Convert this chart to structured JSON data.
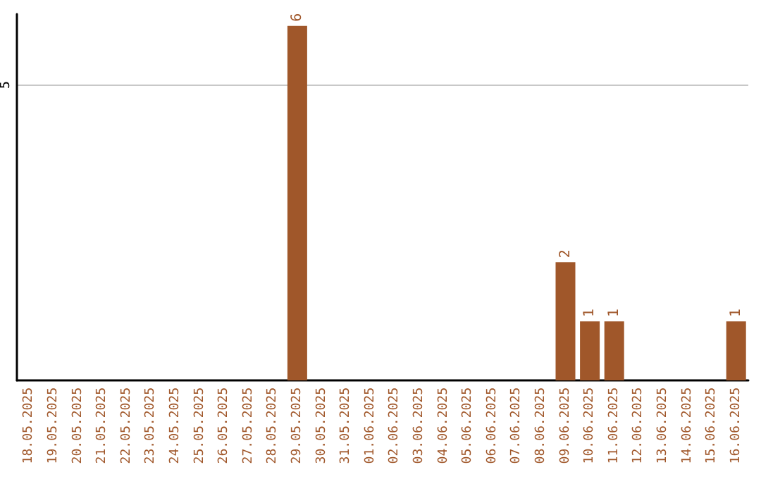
{
  "chart_data": {
    "type": "bar",
    "categories": [
      "18.05.2025",
      "19.05.2025",
      "20.05.2025",
      "21.05.2025",
      "22.05.2025",
      "23.05.2025",
      "24.05.2025",
      "25.05.2025",
      "26.05.2025",
      "27.05.2025",
      "28.05.2025",
      "29.05.2025",
      "30.05.2025",
      "31.05.2025",
      "01.06.2025",
      "02.06.2025",
      "03.06.2025",
      "04.06.2025",
      "05.06.2025",
      "06.06.2025",
      "07.06.2025",
      "08.06.2025",
      "09.06.2025",
      "10.06.2025",
      "11.06.2025",
      "12.06.2025",
      "13.06.2025",
      "14.06.2025",
      "15.06.2025",
      "16.06.2025"
    ],
    "values": [
      0,
      0,
      0,
      0,
      0,
      0,
      0,
      0,
      0,
      0,
      0,
      6,
      0,
      0,
      0,
      0,
      0,
      0,
      0,
      0,
      0,
      0,
      2,
      1,
      1,
      0,
      0,
      0,
      0,
      1
    ],
    "value_labels": [
      null,
      null,
      null,
      null,
      null,
      null,
      null,
      null,
      null,
      null,
      null,
      "6",
      null,
      null,
      null,
      null,
      null,
      null,
      null,
      null,
      null,
      null,
      "2",
      "1",
      "1",
      null,
      null,
      null,
      null,
      "1"
    ],
    "color": "#a0572a",
    "ylim": [
      0,
      6.2
    ],
    "yticks": [
      5
    ],
    "grid": "y"
  }
}
